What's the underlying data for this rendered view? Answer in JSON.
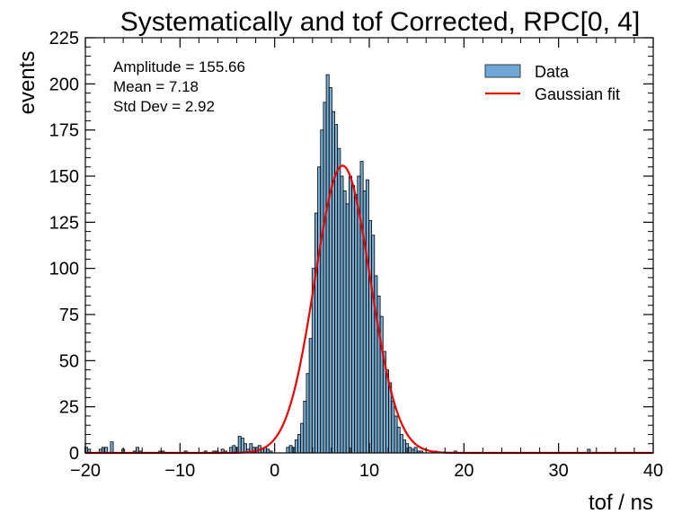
{
  "chart_data": {
    "type": "bar",
    "title": "Systematically and tof Corrected, RPC[0, 4]",
    "xlabel": "tof / ns",
    "ylabel": "events",
    "xlim": [
      -20,
      40
    ],
    "ylim": [
      0,
      225
    ],
    "xticks": [
      -20,
      -10,
      0,
      10,
      20,
      30,
      40
    ],
    "yticks": [
      0,
      25,
      50,
      75,
      100,
      125,
      150,
      175,
      200,
      225
    ],
    "xtick_labels": [
      "−20",
      "−10",
      "0",
      "10",
      "20",
      "30",
      "40"
    ],
    "ytick_labels": [
      "0",
      "25",
      "50",
      "75",
      "100",
      "125",
      "150",
      "175",
      "200",
      "225"
    ],
    "grid": false,
    "legend": {
      "position": "top-right",
      "entries": [
        {
          "label": "Data",
          "kind": "patch",
          "color": "#6fa8d6"
        },
        {
          "label": "Gaussian fit",
          "kind": "line",
          "color": "#ee0000"
        }
      ]
    },
    "annotations": [
      "Amplitude = 155.66",
      "Mean = 7.18",
      "Std Dev = 2.92"
    ],
    "histogram": {
      "name": "Data",
      "bin_width": 0.3,
      "fill_color": "#1f77b4",
      "edge_color": "#000000",
      "bins": [
        [
          -19.9,
          3
        ],
        [
          -19.6,
          2
        ],
        [
          -18.4,
          2
        ],
        [
          -18.1,
          3
        ],
        [
          -17.8,
          3
        ],
        [
          -17.2,
          6
        ],
        [
          -16.0,
          2
        ],
        [
          -14.8,
          1
        ],
        [
          -14.5,
          3
        ],
        [
          -14.2,
          1
        ],
        [
          -12.1,
          1
        ],
        [
          -11.8,
          1
        ],
        [
          -9.4,
          1
        ],
        [
          -7.3,
          1
        ],
        [
          -6.4,
          1
        ],
        [
          -6.1,
          1
        ],
        [
          -5.5,
          2
        ],
        [
          -5.2,
          1
        ],
        [
          -4.6,
          3
        ],
        [
          -4.3,
          4
        ],
        [
          -4.0,
          3
        ],
        [
          -3.7,
          9
        ],
        [
          -3.4,
          8
        ],
        [
          -3.1,
          5
        ],
        [
          -2.8,
          2
        ],
        [
          -2.5,
          5
        ],
        [
          -2.2,
          3
        ],
        [
          -1.9,
          3
        ],
        [
          -1.6,
          4
        ],
        [
          -1.3,
          2
        ],
        [
          -1.0,
          3
        ],
        [
          -0.7,
          2
        ],
        [
          -0.4,
          1
        ],
        [
          1.4,
          3
        ],
        [
          1.7,
          4
        ],
        [
          2.0,
          3
        ],
        [
          2.3,
          7
        ],
        [
          2.6,
          10
        ],
        [
          2.9,
          16
        ],
        [
          3.2,
          28
        ],
        [
          3.5,
          43
        ],
        [
          3.8,
          62
        ],
        [
          4.1,
          100
        ],
        [
          4.4,
          130
        ],
        [
          4.7,
          155
        ],
        [
          5.0,
          175
        ],
        [
          5.3,
          190
        ],
        [
          5.6,
          205
        ],
        [
          5.9,
          198
        ],
        [
          6.2,
          185
        ],
        [
          6.5,
          178
        ],
        [
          6.8,
          165
        ],
        [
          7.1,
          150
        ],
        [
          7.4,
          142
        ],
        [
          7.7,
          135
        ],
        [
          8.0,
          150
        ],
        [
          8.3,
          145
        ],
        [
          8.6,
          140
        ],
        [
          8.9,
          150
        ],
        [
          9.2,
          158
        ],
        [
          9.5,
          142
        ],
        [
          9.8,
          148
        ],
        [
          10.1,
          126
        ],
        [
          10.4,
          118
        ],
        [
          10.7,
          96
        ],
        [
          11.0,
          85
        ],
        [
          11.3,
          74
        ],
        [
          11.6,
          55
        ],
        [
          11.9,
          45
        ],
        [
          12.2,
          38
        ],
        [
          12.5,
          28
        ],
        [
          12.8,
          20
        ],
        [
          13.1,
          14
        ],
        [
          13.4,
          10
        ],
        [
          13.7,
          7
        ],
        [
          14.0,
          5
        ],
        [
          14.3,
          3
        ],
        [
          14.6,
          2
        ],
        [
          14.9,
          3
        ],
        [
          15.2,
          1
        ],
        [
          15.5,
          1
        ],
        [
          16.7,
          1
        ],
        [
          17.0,
          1
        ],
        [
          19.1,
          1
        ],
        [
          33.2,
          2
        ]
      ]
    },
    "fit": {
      "name": "Gaussian fit",
      "amplitude": 155.66,
      "mean": 7.18,
      "std_dev": 2.92,
      "color": "#ee0000"
    }
  }
}
